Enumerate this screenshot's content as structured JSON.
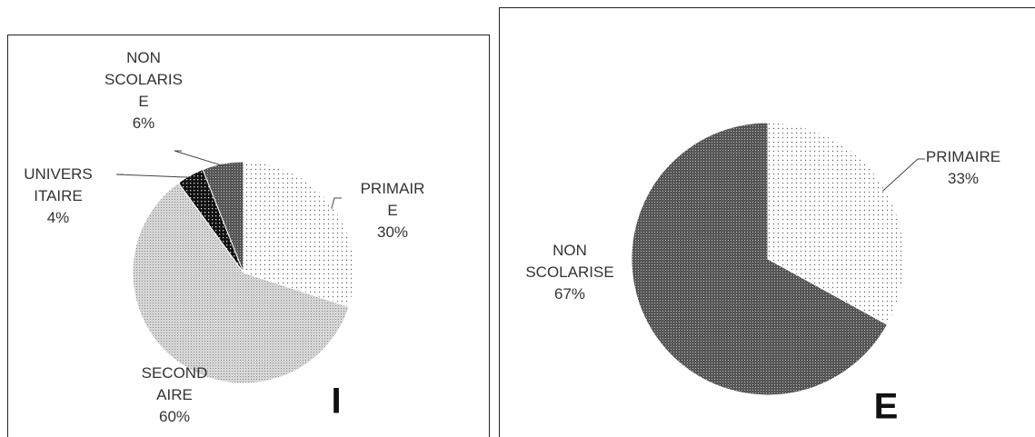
{
  "chart_data": [
    {
      "type": "pie",
      "title": "I",
      "categories": [
        "PRIMAIRE",
        "SECONDAIRE",
        "UNIVERSITAIRE",
        "NON SCOLARISE"
      ],
      "values": [
        30,
        60,
        4,
        6
      ],
      "value_labels": [
        "30%",
        "60%",
        "4%",
        "6%"
      ]
    },
    {
      "type": "pie",
      "title": "E",
      "categories": [
        "PRIMAIRE",
        "NON SCOLARISE"
      ],
      "values": [
        33,
        67
      ],
      "value_labels": [
        "33%",
        "67%"
      ]
    }
  ]
}
